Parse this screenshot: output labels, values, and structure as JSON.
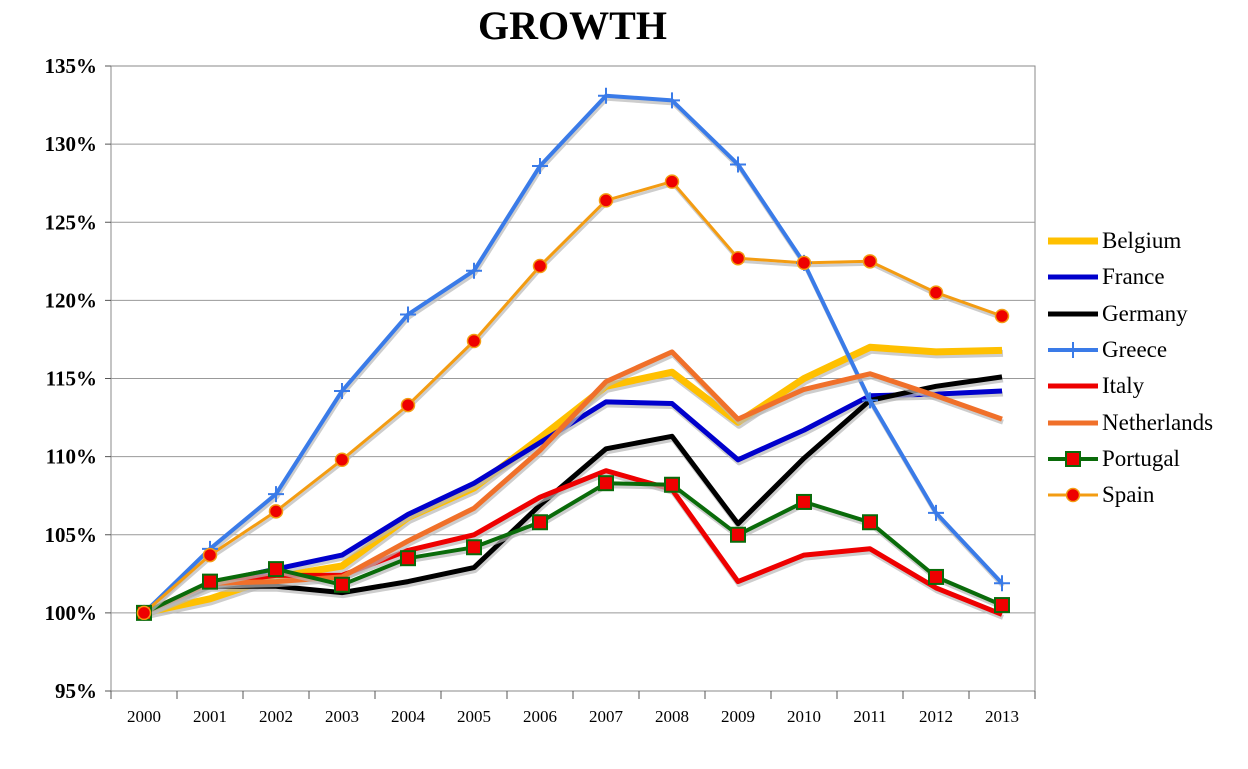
{
  "chart_data": {
    "type": "line",
    "title": "GROWTH",
    "xlabel": "",
    "ylabel": "",
    "x": [
      "2000",
      "2001",
      "2002",
      "2003",
      "2004",
      "2005",
      "2006",
      "2007",
      "2008",
      "2009",
      "2010",
      "2011",
      "2012",
      "2013"
    ],
    "y_ticks": [
      "95%",
      "100%",
      "105%",
      "110%",
      "115%",
      "120%",
      "125%",
      "130%",
      "135%"
    ],
    "ylim": [
      95,
      135
    ],
    "grid": true,
    "legend_position": "right",
    "series": [
      {
        "name": "Belgium",
        "color": "#FFC000",
        "marker": "none",
        "width": 7,
        "values": [
          100,
          100.9,
          102.3,
          103.0,
          106.1,
          108.0,
          111.2,
          114.5,
          115.4,
          112.2,
          115.0,
          117.0,
          116.7,
          116.8
        ]
      },
      {
        "name": "France",
        "color": "#0000CC",
        "marker": "none",
        "width": 5,
        "values": [
          100,
          101.9,
          102.8,
          103.7,
          106.3,
          108.3,
          110.9,
          113.5,
          113.4,
          109.8,
          111.7,
          113.9,
          114.0,
          114.2
        ]
      },
      {
        "name": "Germany",
        "color": "#000000",
        "marker": "none",
        "width": 5,
        "values": [
          100,
          101.7,
          101.7,
          101.3,
          102.0,
          102.9,
          106.9,
          110.5,
          111.3,
          105.7,
          109.9,
          113.6,
          114.5,
          115.1
        ]
      },
      {
        "name": "Greece",
        "color": "#3A7BE8",
        "marker": "plus",
        "width": 4,
        "values": [
          100,
          104.1,
          107.6,
          114.2,
          119.1,
          121.9,
          128.6,
          133.1,
          132.8,
          128.7,
          122.4,
          113.6,
          106.4,
          101.9
        ]
      },
      {
        "name": "Italy",
        "color": "#EE0000",
        "marker": "none",
        "width": 5,
        "values": [
          100,
          101.9,
          102.4,
          102.4,
          104.0,
          105.0,
          107.4,
          109.1,
          107.9,
          102.0,
          103.7,
          104.1,
          101.6,
          99.9
        ]
      },
      {
        "name": "Netherlands",
        "color": "#F0702A",
        "marker": "none",
        "width": 5,
        "values": [
          100,
          101.9,
          102.0,
          102.3,
          104.6,
          106.7,
          110.4,
          114.8,
          116.7,
          112.4,
          114.3,
          115.3,
          113.9,
          112.4
        ]
      },
      {
        "name": "Portugal",
        "color": "#0A6B0A",
        "marker": "square",
        "width": 4,
        "values": [
          100,
          102.0,
          102.8,
          101.8,
          103.5,
          104.2,
          105.8,
          108.3,
          108.2,
          105.0,
          107.1,
          105.8,
          102.3,
          100.5
        ]
      },
      {
        "name": "Spain",
        "color": "#F39C12",
        "marker": "circle",
        "width": 3,
        "values": [
          100,
          103.7,
          106.5,
          109.8,
          113.3,
          117.4,
          122.2,
          126.4,
          127.6,
          122.7,
          122.4,
          122.5,
          120.5,
          119.0
        ]
      }
    ]
  }
}
